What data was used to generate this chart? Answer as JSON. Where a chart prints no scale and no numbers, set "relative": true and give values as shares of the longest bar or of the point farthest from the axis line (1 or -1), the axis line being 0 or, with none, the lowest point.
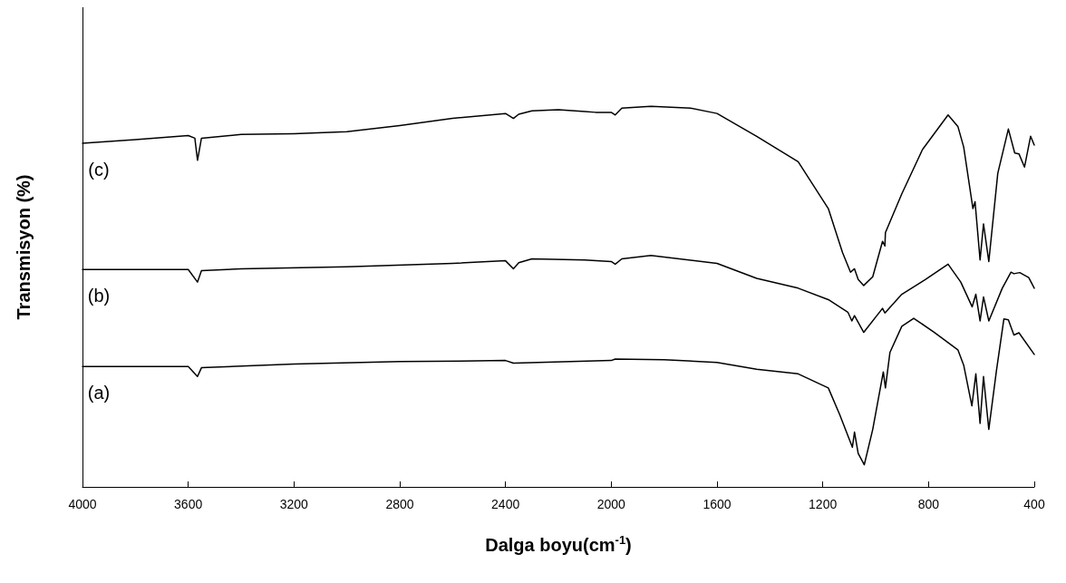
{
  "chart_data": {
    "type": "line",
    "relative": true,
    "xlabel": "Dalga boyu(cm$^{-1}$)",
    "ylabel": "Transmisyon (%)",
    "xlim": [
      4000,
      400
    ],
    "xticks": [
      4000,
      3600,
      3200,
      2800,
      2400,
      2000,
      1600,
      1200,
      800,
      400
    ],
    "grid": false,
    "legend": false,
    "marker": "none",
    "line_style": "solid",
    "series": [
      {
        "name": "(c)",
        "color": "#000000",
        "x": [
          4000,
          3800,
          3600,
          3575,
          3565,
          3550,
          3400,
          3200,
          3000,
          2800,
          2600,
          2400,
          2370,
          2350,
          2300,
          2200,
          2100,
          2060,
          2000,
          1985,
          1960,
          1850,
          1700,
          1600,
          1450,
          1293,
          1179,
          1125,
          1095,
          1080,
          1066,
          1045,
          1011,
          974,
          965,
          963,
          901,
          823,
          726,
          689,
          667,
          632,
          624,
          605,
          592,
          572,
          538,
          498,
          474,
          458,
          437,
          414,
          400
        ],
        "values": [
          0.903,
          0.912,
          0.923,
          0.916,
          0.858,
          0.916,
          0.926,
          0.928,
          0.933,
          0.949,
          0.968,
          0.981,
          0.968,
          0.979,
          0.988,
          0.991,
          0.986,
          0.984,
          0.984,
          0.977,
          0.995,
          1.0,
          0.995,
          0.981,
          0.921,
          0.854,
          0.731,
          0.615,
          0.564,
          0.573,
          0.545,
          0.529,
          0.552,
          0.645,
          0.633,
          0.668,
          0.77,
          0.886,
          0.977,
          0.947,
          0.893,
          0.731,
          0.749,
          0.596,
          0.691,
          0.592,
          0.824,
          0.94,
          0.877,
          0.875,
          0.84,
          0.921,
          0.898
        ]
      },
      {
        "name": "(b)",
        "color": "#000000",
        "x": [
          4000,
          3600,
          3565,
          3550,
          3400,
          3000,
          2600,
          2400,
          2370,
          2350,
          2300,
          2100,
          2000,
          1985,
          1960,
          1850,
          1600,
          1450,
          1293,
          1179,
          1105,
          1090,
          1080,
          1045,
          974,
          965,
          901,
          811,
          726,
          678,
          635,
          621,
          605,
          592,
          572,
          521,
          488,
          477,
          455,
          421,
          400
        ],
        "values": [
          0.571,
          0.571,
          0.538,
          0.568,
          0.573,
          0.578,
          0.587,
          0.594,
          0.573,
          0.589,
          0.599,
          0.596,
          0.592,
          0.585,
          0.599,
          0.608,
          0.587,
          0.548,
          0.522,
          0.492,
          0.459,
          0.436,
          0.45,
          0.406,
          0.469,
          0.457,
          0.506,
          0.545,
          0.585,
          0.538,
          0.473,
          0.506,
          0.436,
          0.499,
          0.436,
          0.522,
          0.564,
          0.56,
          0.563,
          0.55,
          0.522
        ]
      },
      {
        "name": "(a)",
        "color": "#000000",
        "x": [
          4000,
          3600,
          3565,
          3550,
          3200,
          2800,
          2400,
          2370,
          2000,
          1985,
          1800,
          1600,
          1450,
          1293,
          1179,
          1136,
          1088,
          1080,
          1066,
          1043,
          1011,
          971,
          963,
          946,
          901,
          856,
          778,
          689,
          667,
          636,
          621,
          605,
          592,
          572,
          543,
          515,
          498,
          477,
          458,
          400
        ],
        "values": [
          0.316,
          0.316,
          0.29,
          0.313,
          0.323,
          0.329,
          0.332,
          0.325,
          0.332,
          0.336,
          0.334,
          0.327,
          0.309,
          0.297,
          0.26,
          0.19,
          0.104,
          0.144,
          0.088,
          0.058,
          0.151,
          0.302,
          0.26,
          0.353,
          0.422,
          0.443,
          0.406,
          0.36,
          0.32,
          0.213,
          0.297,
          0.167,
          0.29,
          0.151,
          0.306,
          0.441,
          0.439,
          0.399,
          0.405,
          0.348
        ]
      }
    ]
  }
}
